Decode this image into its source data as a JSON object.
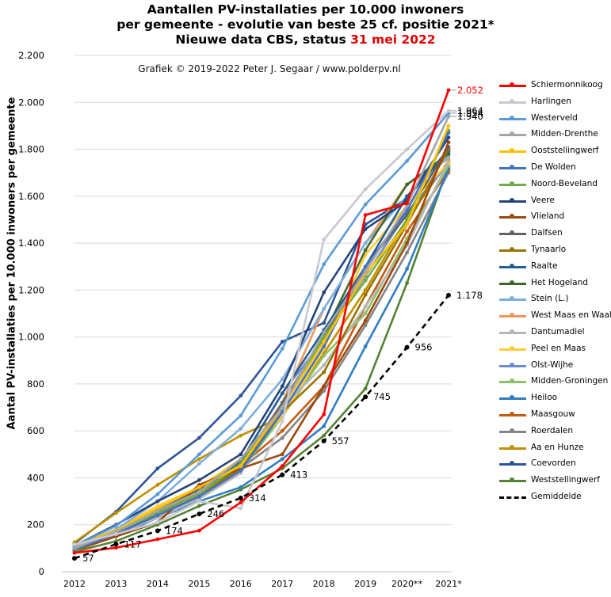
{
  "chart_data": {
    "type": "line",
    "title": [
      "Aantallen PV-installaties  per 10.000 inwoners",
      "per gemeente - evolutie  van beste 25 cf. positie  2021*"
    ],
    "subtitle_prefix": "Nieuwe data CBS, status ",
    "subtitle_highlight": "31 mei 2022",
    "credit": "Grafiek  © 2019-2022  Peter J. Segaar / www.polderpv.nl",
    "ylabel": "Aantal PV-installaties per 10.000 inwoners per gemeente",
    "xlabel": "",
    "ylim": [
      0,
      2200
    ],
    "yticks": [
      0,
      200,
      400,
      600,
      800,
      1000,
      1200,
      1400,
      1600,
      1800,
      2000,
      2200
    ],
    "ytick_labels": [
      "0",
      "200",
      "400",
      "600",
      "800",
      "1.000",
      "1.200",
      "1.400",
      "1.600",
      "1.800",
      "2.000",
      "2.200"
    ],
    "categories": [
      "2012",
      "2013",
      "2014",
      "2015",
      "2016",
      "2017",
      "2018",
      "2019",
      "2020**",
      "2021*"
    ],
    "legend_position": "right",
    "grid": true,
    "series": [
      {
        "name": "Schiermonnikoog",
        "color": "#ff0000",
        "values": [
          80,
          102,
          138,
          175,
          295,
          450,
          670,
          1520,
          1570,
          2052
        ]
      },
      {
        "name": "Harlingen",
        "color": "#c8c8d2",
        "values": [
          115,
          160,
          210,
          300,
          270,
          640,
          1415,
          1630,
          1800,
          1964
        ]
      },
      {
        "name": "Westerveld",
        "color": "#5b9bd5",
        "values": [
          110,
          195,
          330,
          500,
          665,
          950,
          1310,
          1565,
          1750,
          1954
        ]
      },
      {
        "name": "Midden-Drenthe",
        "color": "#a5a5a5",
        "values": [
          100,
          170,
          260,
          340,
          480,
          700,
          1020,
          1280,
          1560,
          1940
        ]
      },
      {
        "name": "Ooststellingwerf",
        "color": "#ffc000",
        "values": [
          105,
          175,
          270,
          360,
          450,
          700,
          980,
          1270,
          1480,
          1900
        ]
      },
      {
        "name": "De Wolden",
        "color": "#4472c4",
        "values": [
          95,
          160,
          240,
          320,
          430,
          680,
          960,
          1300,
          1540,
          1870
        ]
      },
      {
        "name": "Noord-Beveland",
        "color": "#70ad47",
        "values": [
          90,
          170,
          250,
          330,
          460,
          700,
          1000,
          1240,
          1500,
          1880
        ]
      },
      {
        "name": "Veere",
        "color": "#264478",
        "values": [
          110,
          200,
          300,
          390,
          500,
          790,
          1190,
          1460,
          1580,
          1850
        ]
      },
      {
        "name": "Vlieland",
        "color": "#9e480e",
        "values": [
          90,
          150,
          210,
          370,
          440,
          500,
          790,
          1070,
          1400,
          1830
        ]
      },
      {
        "name": "Dalfsen",
        "color": "#636363",
        "values": [
          105,
          175,
          260,
          350,
          450,
          720,
          1000,
          1300,
          1520,
          1810
        ]
      },
      {
        "name": "Tynaarlo",
        "color": "#997300",
        "values": [
          100,
          170,
          250,
          330,
          440,
          680,
          850,
          1180,
          1480,
          1800
        ]
      },
      {
        "name": "Raalte",
        "color": "#255e91",
        "values": [
          95,
          165,
          260,
          350,
          470,
          760,
          1030,
          1300,
          1600,
          1790
        ]
      },
      {
        "name": "Het Hogeland",
        "color": "#43682b",
        "values": [
          95,
          160,
          250,
          330,
          450,
          700,
          1010,
          1370,
          1650,
          1780
        ]
      },
      {
        "name": "Stein (L.)",
        "color": "#7cafdd",
        "values": [
          100,
          180,
          300,
          460,
          610,
          820,
          1120,
          1400,
          1600,
          1770
        ]
      },
      {
        "name": "West Maas en Waal",
        "color": "#f1975a",
        "values": [
          95,
          165,
          250,
          330,
          460,
          720,
          1120,
          1400,
          1650,
          1760
        ]
      },
      {
        "name": "Dantumadiel",
        "color": "#b7b7b7",
        "values": [
          100,
          160,
          230,
          310,
          420,
          700,
          880,
          1130,
          1390,
          1750
        ]
      },
      {
        "name": "Peel en Maas",
        "color": "#ffcd33",
        "values": [
          110,
          180,
          280,
          360,
          480,
          660,
          950,
          1350,
          1560,
          1740
        ]
      },
      {
        "name": "Olst-Wijhe",
        "color": "#698ed0",
        "values": [
          95,
          165,
          260,
          350,
          470,
          760,
          990,
          1260,
          1530,
          1740
        ]
      },
      {
        "name": "Midden-Groningen",
        "color": "#8cc168",
        "values": [
          90,
          160,
          240,
          320,
          430,
          660,
          920,
          1100,
          1420,
          1730
        ]
      },
      {
        "name": "Heiloo",
        "color": "#327dc2",
        "values": [
          95,
          150,
          230,
          300,
          360,
          480,
          620,
          960,
          1290,
          1720
        ]
      },
      {
        "name": "Maasgouw",
        "color": "#c55a11",
        "values": [
          100,
          165,
          250,
          340,
          450,
          600,
          790,
          1130,
          1450,
          1710
        ]
      },
      {
        "name": "Roerdalen",
        "color": "#848484",
        "values": [
          95,
          160,
          240,
          320,
          440,
          570,
          770,
          1050,
          1360,
          1700
        ]
      },
      {
        "name": "Aa en Hunze",
        "color": "#bf9000",
        "values": [
          125,
          250,
          370,
          480,
          580,
          660,
          930,
          1200,
          1500,
          1750
        ]
      },
      {
        "name": "Coevorden",
        "color": "#2e5597",
        "values": [
          120,
          255,
          440,
          570,
          750,
          980,
          1060,
          1480,
          1590,
          1800
        ]
      },
      {
        "name": "Weststellingwerf",
        "color": "#548235",
        "values": [
          85,
          130,
          200,
          280,
          350,
          440,
          580,
          780,
          1230,
          1730
        ]
      },
      {
        "name": "Gemiddelde",
        "color": "#000000",
        "dashed": true,
        "values": [
          57,
          117,
          174,
          246,
          314,
          413,
          557,
          745,
          956,
          1178
        ]
      }
    ],
    "value_labels": [
      {
        "series": "Gemiddelde",
        "labels": [
          "57",
          "117",
          "174",
          "246",
          "314",
          "413",
          "557",
          "745",
          "956",
          "1.178"
        ]
      },
      {
        "series": "Schiermonnikoog",
        "label": "2.052",
        "color": "#ff0000"
      },
      {
        "series": "Harlingen",
        "label": "1.964",
        "color": "#000000"
      },
      {
        "series": "Westerveld",
        "label": "1.954",
        "color": "#000000"
      },
      {
        "series": "Midden-Drenthe",
        "label": "1.940",
        "color": "#000000"
      }
    ]
  }
}
